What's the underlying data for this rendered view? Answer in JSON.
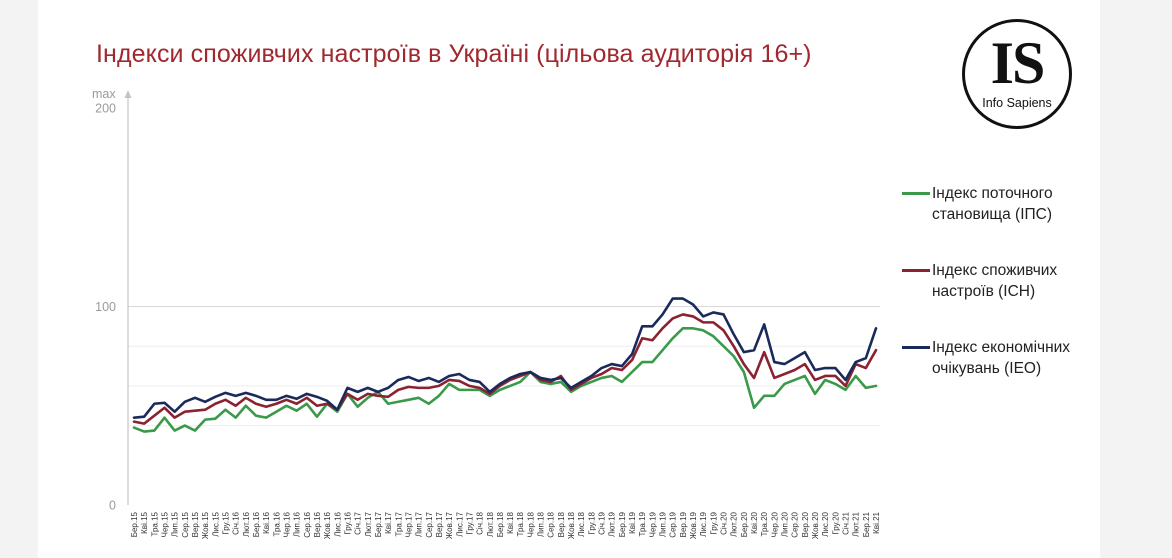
{
  "title": "Індекси споживчих настроїв в Україні (цільова аудиторія 16+)",
  "logo": {
    "mark": "IS",
    "name": "Info Sapiens"
  },
  "colors": {
    "ips": "#3a9a4a",
    "ich": "#8b2232",
    "ieo": "#1a2a5a",
    "title": "#a0282f"
  },
  "chart_data": {
    "type": "line",
    "title": "Індекси споживчих настроїв в Україні (цільова аудиторія 16+)",
    "y_axis_label": "max",
    "ylim": [
      0,
      200
    ],
    "y_ticks": [
      "0",
      "100",
      "200"
    ],
    "grid": true,
    "legend_placement": "right",
    "x": [
      "Бер.15",
      "Кві.15",
      "Тра.15",
      "Чер.15",
      "Лип.15",
      "Сер.15",
      "Вер.15",
      "Жов.15",
      "Лис.15",
      "Гру.15",
      "Січ.16",
      "Лют.16",
      "Бер.16",
      "Кві.16",
      "Тра.16",
      "Чер.16",
      "Лип.16",
      "Сер.16",
      "Вер.16",
      "Жов.16",
      "Лис.16",
      "Гру.16",
      "Січ.17",
      "Лют.17",
      "Бер.17",
      "Кві.17",
      "Тра.17",
      "Чер.17",
      "Лип.17",
      "Сер.17",
      "Вер.17",
      "Жов.17",
      "Лис.17",
      "Гру.17",
      "Січ.18",
      "Лют.18",
      "Бер.18",
      "Кві.18",
      "Тра.18",
      "Чер.18",
      "Лип.18",
      "Сер.18",
      "Вер.18",
      "Жов.18",
      "Лис.18",
      "Гру.18",
      "Січ.19",
      "Лют.19",
      "Бер.19",
      "Кві.19",
      "Тра.19",
      "Чер.19",
      "Лип.19",
      "Сер.19",
      "Вер.19",
      "Жов.19",
      "Лис.19",
      "Гру.19",
      "Січ.20",
      "Лют.20",
      "Бер.20",
      "Кві.20",
      "Тра.20",
      "Чер.20",
      "Лип.20",
      "Сер.20",
      "Вер.20",
      "Жов.20",
      "Лис.20",
      "Гру.20",
      "Січ.21",
      "Лют.21",
      "Бер.21",
      "Кві.21"
    ],
    "series": [
      {
        "name": "Індекс поточного становища (ІПС)",
        "key": "ips",
        "values": [
          39,
          37,
          37.5,
          44,
          37.5,
          40,
          37.5,
          43,
          43.5,
          48,
          44,
          50,
          45,
          44,
          47,
          50,
          47.5,
          51,
          44.5,
          51,
          47,
          56,
          49.5,
          54,
          57,
          51,
          52,
          53,
          54,
          51,
          55,
          61,
          58,
          58,
          58,
          55,
          58,
          60,
          62,
          67,
          62,
          61,
          62,
          57,
          60,
          62,
          64,
          65,
          62,
          67,
          72,
          72,
          78,
          84,
          89,
          89,
          88,
          85,
          80,
          75,
          67,
          49,
          55,
          55,
          61,
          63,
          65,
          56,
          63,
          61,
          58,
          65,
          59,
          60
        ]
      },
      {
        "name": "Індекс споживчих настроїв (ІСН)",
        "key": "ich",
        "values": [
          42,
          41,
          45,
          49,
          44,
          47,
          47.5,
          48,
          51,
          53,
          50,
          54,
          51,
          49.5,
          51,
          53,
          51,
          54,
          50,
          51,
          48,
          56,
          53,
          56,
          55,
          54.5,
          58,
          59.5,
          59,
          59,
          60,
          63,
          62.5,
          60,
          59,
          56,
          60,
          63,
          65,
          67,
          63,
          62,
          65,
          58,
          61,
          64,
          66,
          69,
          68,
          73,
          84,
          83,
          89,
          94,
          96,
          95,
          92,
          92,
          88,
          80,
          71,
          64,
          77,
          64,
          66,
          68,
          71,
          63,
          65,
          65,
          60,
          71,
          69,
          78
        ]
      },
      {
        "name": "Індекс економічних очікувань (IEO)",
        "key": "ieo",
        "values": [
          44,
          44.5,
          51,
          51.5,
          47,
          52,
          54,
          52,
          54.5,
          56.5,
          55,
          56.5,
          55,
          53,
          53,
          55,
          53.5,
          56,
          54.5,
          52.5,
          48,
          59,
          57,
          59,
          57,
          59,
          63,
          64.5,
          62.5,
          64,
          62,
          65,
          66,
          63,
          62,
          57,
          61,
          64,
          66,
          67,
          64,
          63,
          64,
          59,
          62,
          65,
          69,
          71,
          70,
          76,
          90,
          90,
          96,
          104,
          104,
          101,
          95,
          97,
          96,
          86,
          77,
          78,
          91,
          72,
          71,
          74,
          77,
          68,
          69,
          69,
          63,
          72,
          74,
          89
        ]
      }
    ]
  }
}
